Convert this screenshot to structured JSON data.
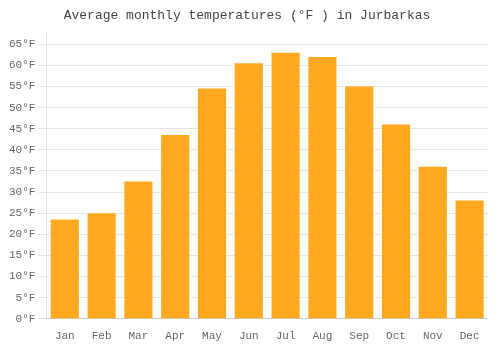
{
  "chart_data": {
    "type": "bar",
    "title": "Average monthly temperatures (°F ) in Jurbarkas",
    "categories": [
      "Jan",
      "Feb",
      "Mar",
      "Apr",
      "May",
      "Jun",
      "Jul",
      "Aug",
      "Sep",
      "Oct",
      "Nov",
      "Dec"
    ],
    "values": [
      23.5,
      25,
      32.5,
      43.5,
      54.5,
      60.5,
      63,
      62,
      55,
      46,
      36,
      28
    ],
    "color": "#FFA820",
    "ylim": [
      0,
      68
    ],
    "yticks": [
      {
        "value": 0,
        "label": "0°F"
      },
      {
        "value": 5,
        "label": "5°F"
      },
      {
        "value": 10,
        "label": "10°F"
      },
      {
        "value": 15,
        "label": "15°F"
      },
      {
        "value": 20,
        "label": "20°F"
      },
      {
        "value": 25,
        "label": "25°F"
      },
      {
        "value": 30,
        "label": "30°F"
      },
      {
        "value": 35,
        "label": "35°F"
      },
      {
        "value": 40,
        "label": "40°F"
      },
      {
        "value": 45,
        "label": "45°F"
      },
      {
        "value": 50,
        "label": "50°F"
      },
      {
        "value": 55,
        "label": "55°F"
      },
      {
        "value": 60,
        "label": "60°F"
      },
      {
        "value": 65,
        "label": "65°F"
      }
    ],
    "grid": true
  }
}
